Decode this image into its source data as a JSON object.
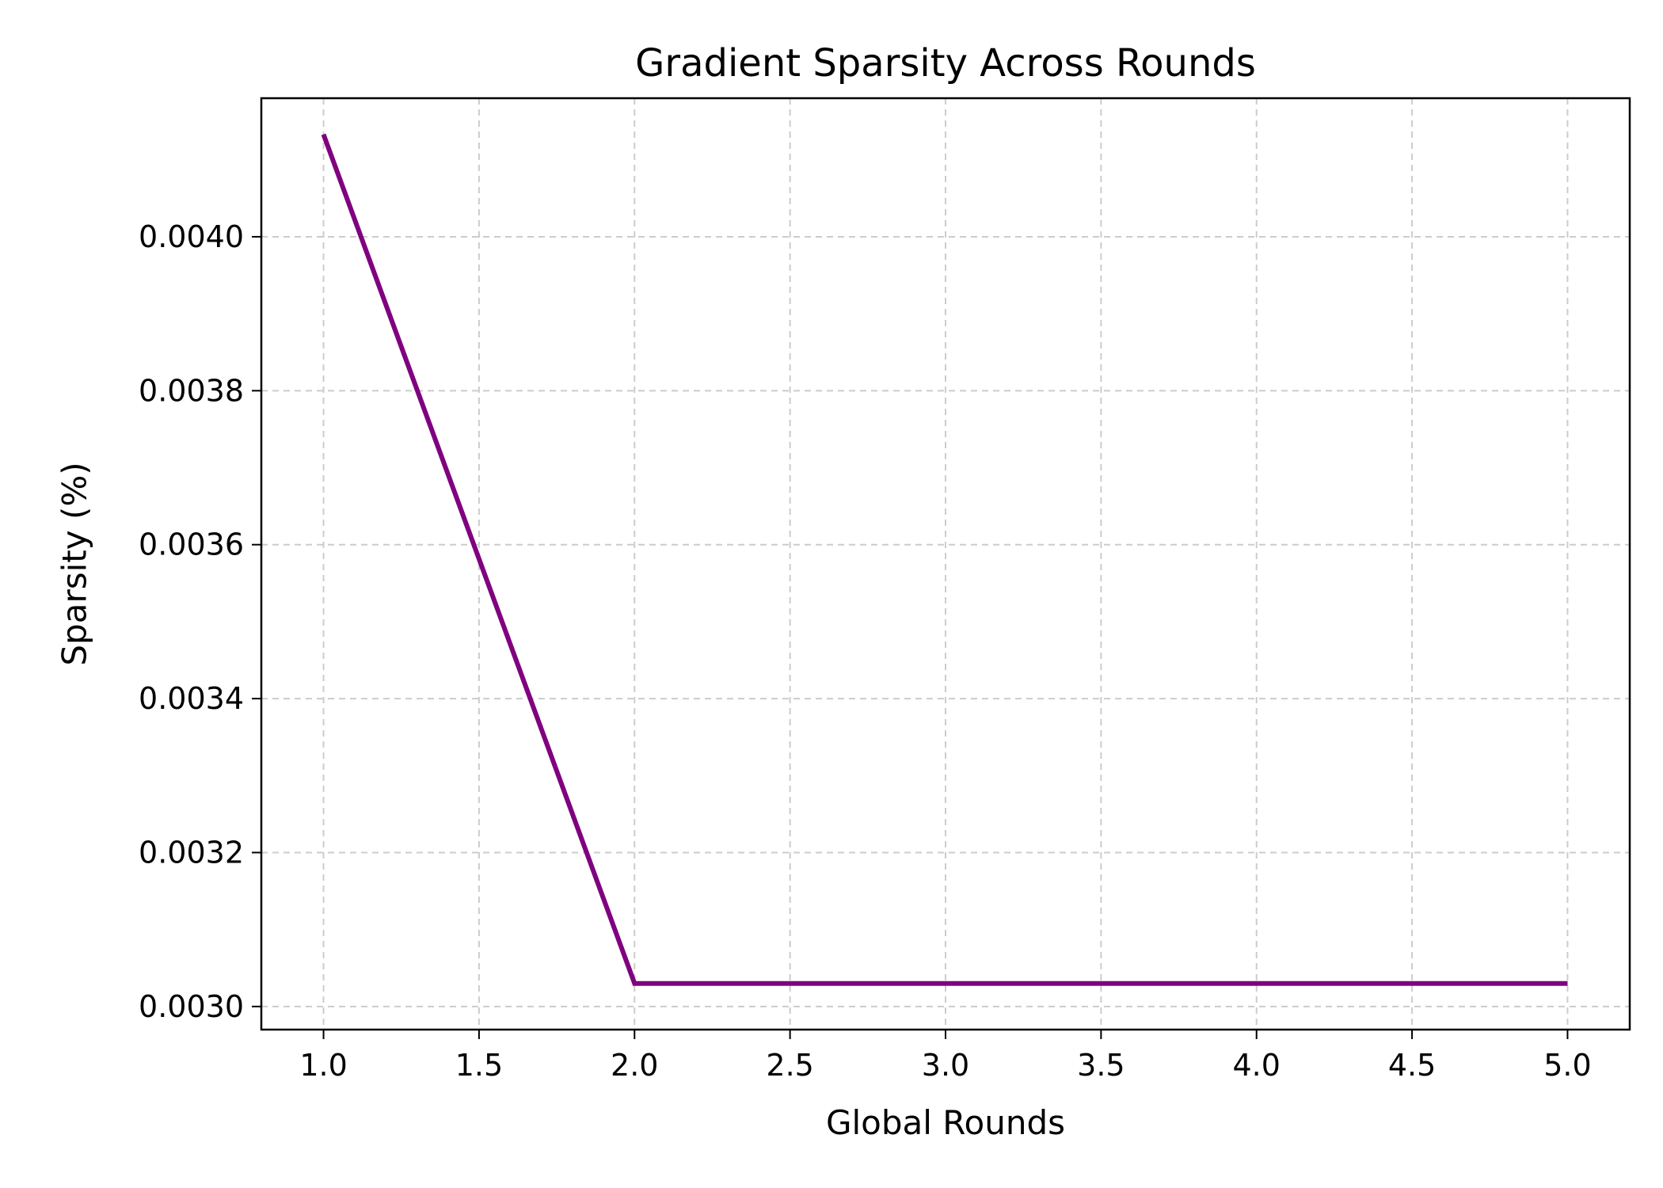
{
  "chart_data": {
    "type": "line",
    "title": "Gradient Sparsity Across Rounds",
    "xlabel": "Global Rounds",
    "ylabel": "Sparsity (%)",
    "xlim": [
      0.8,
      5.2
    ],
    "ylim": [
      0.00297,
      0.00418
    ],
    "grid": true,
    "x_ticks": [
      1.0,
      1.5,
      2.0,
      2.5,
      3.0,
      3.5,
      4.0,
      4.5,
      5.0
    ],
    "x_tick_labels": [
      "1.0",
      "1.5",
      "2.0",
      "2.5",
      "3.0",
      "3.5",
      "4.0",
      "4.5",
      "5.0"
    ],
    "y_ticks": [
      0.003,
      0.0032,
      0.0034,
      0.0036,
      0.0038,
      0.004
    ],
    "y_tick_labels": [
      "0.0030",
      "0.0032",
      "0.0034",
      "0.0036",
      "0.0038",
      "0.0040"
    ],
    "series": [
      {
        "x": [
          1,
          2,
          3,
          4,
          5
        ],
        "values": [
          0.004133,
          0.00303,
          0.00303,
          0.00303,
          0.00303
        ],
        "color": "#800080"
      }
    ]
  }
}
